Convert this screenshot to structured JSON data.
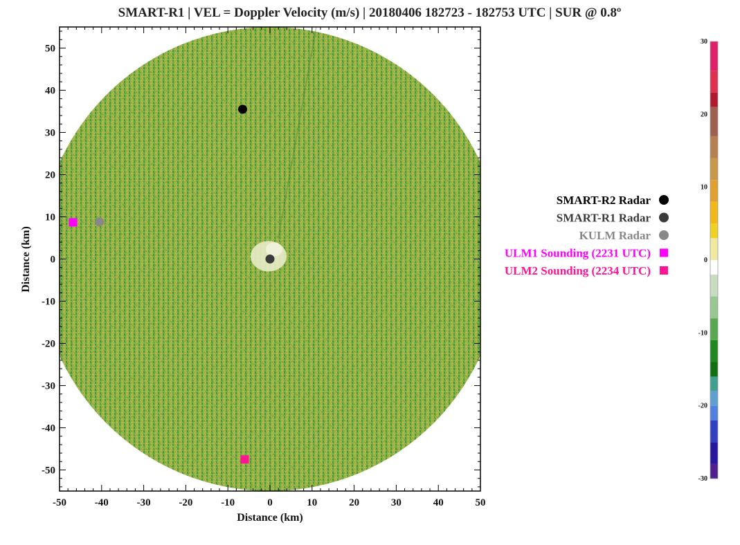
{
  "chart_data": {
    "type": "scatter",
    "title": "SMART-R1 | VEL = Doppler Velocity (m/s) | 20180406 182723 - 182753 UTC | SUR @ 0.8º",
    "xlabel": "Distance (km)",
    "ylabel": "Distance (km)",
    "xlim": [
      -50,
      50
    ],
    "ylim": [
      -55,
      55
    ],
    "x_ticks": [
      -50,
      -40,
      -30,
      -20,
      -10,
      0,
      10,
      20,
      30,
      40,
      50
    ],
    "y_ticks": [
      -50,
      -40,
      -30,
      -20,
      -10,
      0,
      10,
      20,
      30,
      40,
      50
    ],
    "radar_range_km": 55,
    "background_field": "Doppler velocity, near zero (green/yellow speckle) across full sweep",
    "grid": false,
    "legend_position": "right",
    "series": [
      {
        "name": "SMART-R2 Radar",
        "marker": "circle",
        "color": "#000000",
        "x": [
          -6.5
        ],
        "y": [
          35.5
        ]
      },
      {
        "name": "SMART-R1 Radar",
        "marker": "circle",
        "color": "#3a3a3a",
        "x": [
          0
        ],
        "y": [
          0
        ]
      },
      {
        "name": "KULM Radar",
        "marker": "circle",
        "color": "#888888",
        "x": [
          -40.5
        ],
        "y": [
          8.8
        ]
      },
      {
        "name": "ULM1 Sounding (2231 UTC)",
        "marker": "square",
        "color": "#ff00ff",
        "x": [
          -46.8
        ],
        "y": [
          8.7
        ]
      },
      {
        "name": "ULM2 Sounding (2234 UTC)",
        "marker": "square",
        "color": "#ff1493",
        "x": [
          -6
        ],
        "y": [
          -47.5
        ]
      }
    ],
    "colorbar": {
      "label_ticks": [
        30,
        20,
        10,
        0,
        -10,
        -20,
        -30
      ],
      "range": [
        -30,
        30
      ],
      "colors": [
        {
          "v": 30,
          "c": "#e0206a"
        },
        {
          "v": 26,
          "c": "#e03050"
        },
        {
          "v": 23,
          "c": "#b01830"
        },
        {
          "v": 21,
          "c": "#a06050"
        },
        {
          "v": 17,
          "c": "#b88050"
        },
        {
          "v": 14,
          "c": "#c89848"
        },
        {
          "v": 11,
          "c": "#e0a030"
        },
        {
          "v": 8,
          "c": "#f0b818"
        },
        {
          "v": 5,
          "c": "#f0d020"
        },
        {
          "v": 3,
          "c": "#f0e8a0"
        },
        {
          "v": 0,
          "c": "#ffffff"
        },
        {
          "v": -2,
          "c": "#c8dcc0"
        },
        {
          "v": -5,
          "c": "#98c890"
        },
        {
          "v": -8,
          "c": "#58a850"
        },
        {
          "v": -11,
          "c": "#208820"
        },
        {
          "v": -14,
          "c": "#107010"
        },
        {
          "v": -16,
          "c": "#40a090"
        },
        {
          "v": -18,
          "c": "#60a0d0"
        },
        {
          "v": -20,
          "c": "#5080e0"
        },
        {
          "v": -22,
          "c": "#3040c0"
        },
        {
          "v": -25,
          "c": "#2818a0"
        },
        {
          "v": -28,
          "c": "#502090"
        },
        {
          "v": -30,
          "c": "#9050b0"
        }
      ]
    }
  }
}
